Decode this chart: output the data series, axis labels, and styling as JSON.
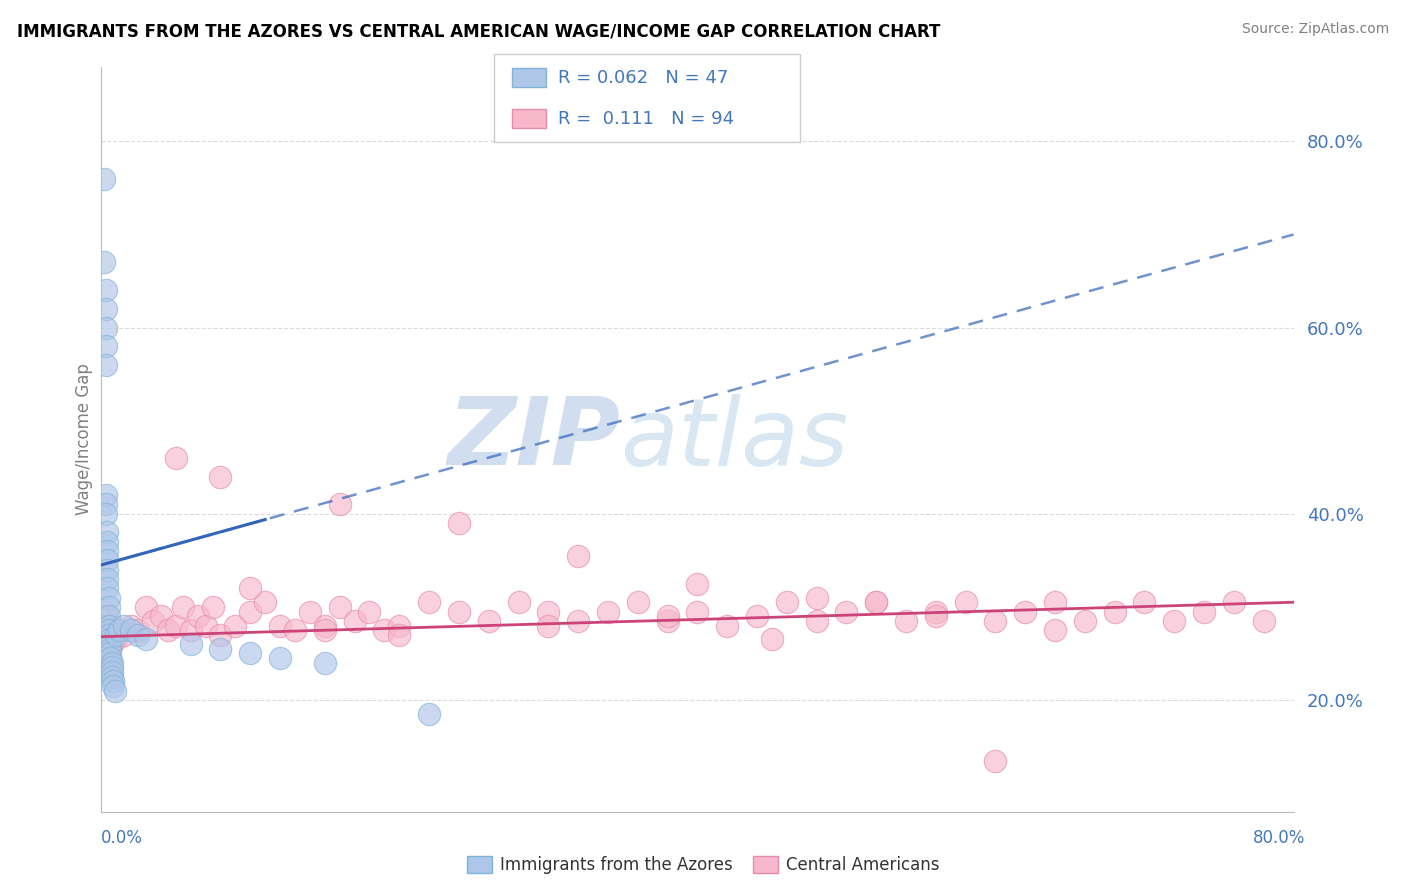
{
  "title": "IMMIGRANTS FROM THE AZORES VS CENTRAL AMERICAN WAGE/INCOME GAP CORRELATION CHART",
  "source": "Source: ZipAtlas.com",
  "ylabel": "Wage/Income Gap",
  "legend_blue_r": "0.062",
  "legend_blue_n": "47",
  "legend_pink_r": "0.111",
  "legend_pink_n": "94",
  "xmin": 0.0,
  "xmax": 0.8,
  "ymin": 0.08,
  "ymax": 0.88,
  "right_yticks": [
    0.2,
    0.4,
    0.6,
    0.8
  ],
  "right_ytick_labels": [
    "20.0%",
    "40.0%",
    "60.0%",
    "80.0%"
  ],
  "blue_fill_color": "#aec6e8",
  "blue_edge_color": "#7fb3d8",
  "pink_fill_color": "#f7b8cc",
  "pink_edge_color": "#e88aaa",
  "blue_line_color": "#3366bb",
  "pink_line_color": "#cc4477",
  "grid_color": "#cccccc",
  "label_color": "#4477bb",
  "blue_trend_x0": 0.0,
  "blue_trend_y0": 0.345,
  "blue_trend_x1": 0.12,
  "blue_trend_y1": 0.395,
  "pink_trend_y0": 0.268,
  "pink_trend_y1": 0.305,
  "blue_x": [
    0.002,
    0.002,
    0.003,
    0.003,
    0.003,
    0.003,
    0.003,
    0.003,
    0.003,
    0.003,
    0.004,
    0.004,
    0.004,
    0.004,
    0.004,
    0.004,
    0.004,
    0.005,
    0.005,
    0.005,
    0.005,
    0.005,
    0.005,
    0.006,
    0.006,
    0.006,
    0.006,
    0.006,
    0.007,
    0.007,
    0.007,
    0.007,
    0.008,
    0.008,
    0.009,
    0.01,
    0.012,
    0.015,
    0.02,
    0.025,
    0.03,
    0.06,
    0.08,
    0.1,
    0.12,
    0.15,
    0.22
  ],
  "blue_y": [
    0.76,
    0.67,
    0.64,
    0.62,
    0.6,
    0.58,
    0.56,
    0.42,
    0.41,
    0.4,
    0.38,
    0.37,
    0.36,
    0.35,
    0.34,
    0.33,
    0.32,
    0.31,
    0.3,
    0.29,
    0.28,
    0.275,
    0.27,
    0.265,
    0.26,
    0.255,
    0.25,
    0.245,
    0.24,
    0.235,
    0.23,
    0.225,
    0.22,
    0.215,
    0.21,
    0.27,
    0.275,
    0.28,
    0.275,
    0.27,
    0.265,
    0.26,
    0.255,
    0.25,
    0.245,
    0.24,
    0.185
  ],
  "pink_x": [
    0.003,
    0.003,
    0.003,
    0.004,
    0.004,
    0.004,
    0.004,
    0.005,
    0.005,
    0.005,
    0.005,
    0.006,
    0.006,
    0.006,
    0.006,
    0.007,
    0.007,
    0.007,
    0.008,
    0.008,
    0.009,
    0.01,
    0.015,
    0.02,
    0.025,
    0.03,
    0.035,
    0.04,
    0.045,
    0.05,
    0.055,
    0.06,
    0.065,
    0.07,
    0.075,
    0.08,
    0.09,
    0.1,
    0.11,
    0.12,
    0.13,
    0.14,
    0.15,
    0.16,
    0.17,
    0.18,
    0.19,
    0.2,
    0.22,
    0.24,
    0.26,
    0.28,
    0.3,
    0.32,
    0.34,
    0.36,
    0.38,
    0.4,
    0.42,
    0.44,
    0.46,
    0.48,
    0.5,
    0.52,
    0.54,
    0.56,
    0.58,
    0.6,
    0.62,
    0.64,
    0.66,
    0.68,
    0.7,
    0.72,
    0.74,
    0.76,
    0.78,
    0.08,
    0.16,
    0.24,
    0.32,
    0.4,
    0.48,
    0.56,
    0.64,
    0.05,
    0.1,
    0.15,
    0.2,
    0.3,
    0.38,
    0.45,
    0.52,
    0.6
  ],
  "pink_y": [
    0.28,
    0.27,
    0.26,
    0.29,
    0.28,
    0.27,
    0.26,
    0.28,
    0.27,
    0.26,
    0.25,
    0.275,
    0.265,
    0.255,
    0.245,
    0.28,
    0.27,
    0.26,
    0.275,
    0.265,
    0.27,
    0.265,
    0.27,
    0.28,
    0.275,
    0.3,
    0.285,
    0.29,
    0.275,
    0.28,
    0.3,
    0.275,
    0.29,
    0.28,
    0.3,
    0.27,
    0.28,
    0.295,
    0.305,
    0.28,
    0.275,
    0.295,
    0.28,
    0.3,
    0.285,
    0.295,
    0.275,
    0.28,
    0.305,
    0.295,
    0.285,
    0.305,
    0.295,
    0.285,
    0.295,
    0.305,
    0.285,
    0.295,
    0.28,
    0.29,
    0.305,
    0.285,
    0.295,
    0.305,
    0.285,
    0.295,
    0.305,
    0.285,
    0.295,
    0.305,
    0.285,
    0.295,
    0.305,
    0.285,
    0.295,
    0.305,
    0.285,
    0.44,
    0.41,
    0.39,
    0.355,
    0.325,
    0.31,
    0.29,
    0.275,
    0.46,
    0.32,
    0.275,
    0.27,
    0.28,
    0.29,
    0.265,
    0.305,
    0.135
  ]
}
